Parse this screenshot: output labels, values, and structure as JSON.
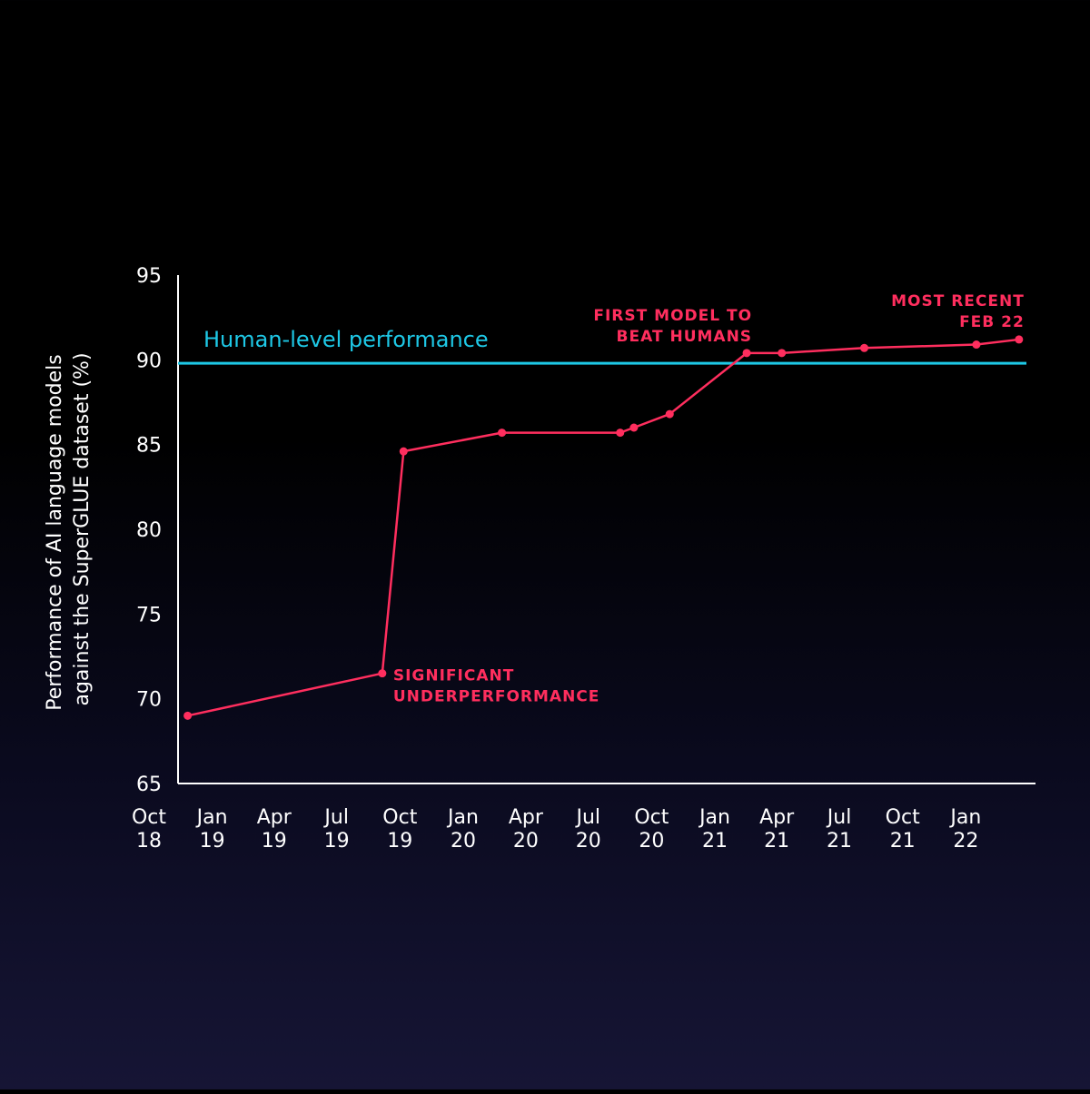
{
  "chart_data": {
    "type": "line",
    "title": "",
    "ylabel_lines": [
      "Performance of AI language models",
      "against the SuperGLUE dataset (%)"
    ],
    "xlabel": "",
    "ylim": [
      65,
      95
    ],
    "yticks": [
      65,
      70,
      75,
      80,
      85,
      90,
      95
    ],
    "x_domain": [
      "2018-10-01",
      "2022-03-01"
    ],
    "x_ticks": [
      {
        "date": "2018-10-01",
        "line1": "Oct",
        "line2": "18"
      },
      {
        "date": "2019-01-01",
        "line1": "Jan",
        "line2": "19"
      },
      {
        "date": "2019-04-01",
        "line1": "Apr",
        "line2": "19"
      },
      {
        "date": "2019-07-01",
        "line1": "Jul",
        "line2": "19"
      },
      {
        "date": "2019-10-01",
        "line1": "Oct",
        "line2": "19"
      },
      {
        "date": "2020-01-01",
        "line1": "Jan",
        "line2": "20"
      },
      {
        "date": "2020-04-01",
        "line1": "Apr",
        "line2": "20"
      },
      {
        "date": "2020-07-01",
        "line1": "Jul",
        "line2": "20"
      },
      {
        "date": "2020-10-01",
        "line1": "Oct",
        "line2": "20"
      },
      {
        "date": "2021-01-01",
        "line1": "Jan",
        "line2": "21"
      },
      {
        "date": "2021-04-01",
        "line1": "Apr",
        "line2": "21"
      },
      {
        "date": "2021-07-01",
        "line1": "Jul",
        "line2": "21"
      },
      {
        "date": "2021-10-01",
        "line1": "Oct",
        "line2": "21"
      },
      {
        "date": "2022-01-01",
        "line1": "Jan",
        "line2": "22"
      }
    ],
    "series": [
      {
        "color": "#ff2e5e",
        "points": [
          {
            "x": "2018-10-15",
            "y": 69.0
          },
          {
            "x": "2019-07-25",
            "y": 71.5
          },
          {
            "x": "2019-08-25",
            "y": 84.6
          },
          {
            "x": "2020-01-15",
            "y": 85.7
          },
          {
            "x": "2020-07-05",
            "y": 85.7
          },
          {
            "x": "2020-07-25",
            "y": 86.0
          },
          {
            "x": "2020-09-15",
            "y": 86.8
          },
          {
            "x": "2021-01-05",
            "y": 90.4
          },
          {
            "x": "2021-02-25",
            "y": 90.4
          },
          {
            "x": "2021-06-25",
            "y": 90.7
          },
          {
            "x": "2021-12-05",
            "y": 90.9
          },
          {
            "x": "2022-02-05",
            "y": 91.2
          }
        ]
      }
    ],
    "reference_line": {
      "y": 89.8,
      "label": "Human-level performance",
      "color": "#1ec8e6"
    },
    "annotations": [
      {
        "point_index": 1,
        "lines": [
          "SIGNIFICANT",
          "UNDERPERFORMANCE"
        ]
      },
      {
        "point_index": 7,
        "lines": [
          "FIRST MODEL TO",
          "BEAT HUMANS"
        ]
      },
      {
        "point_index": 11,
        "lines": [
          "MOST RECENT",
          "FEB 22"
        ]
      }
    ],
    "grid": false,
    "legend": "none"
  }
}
